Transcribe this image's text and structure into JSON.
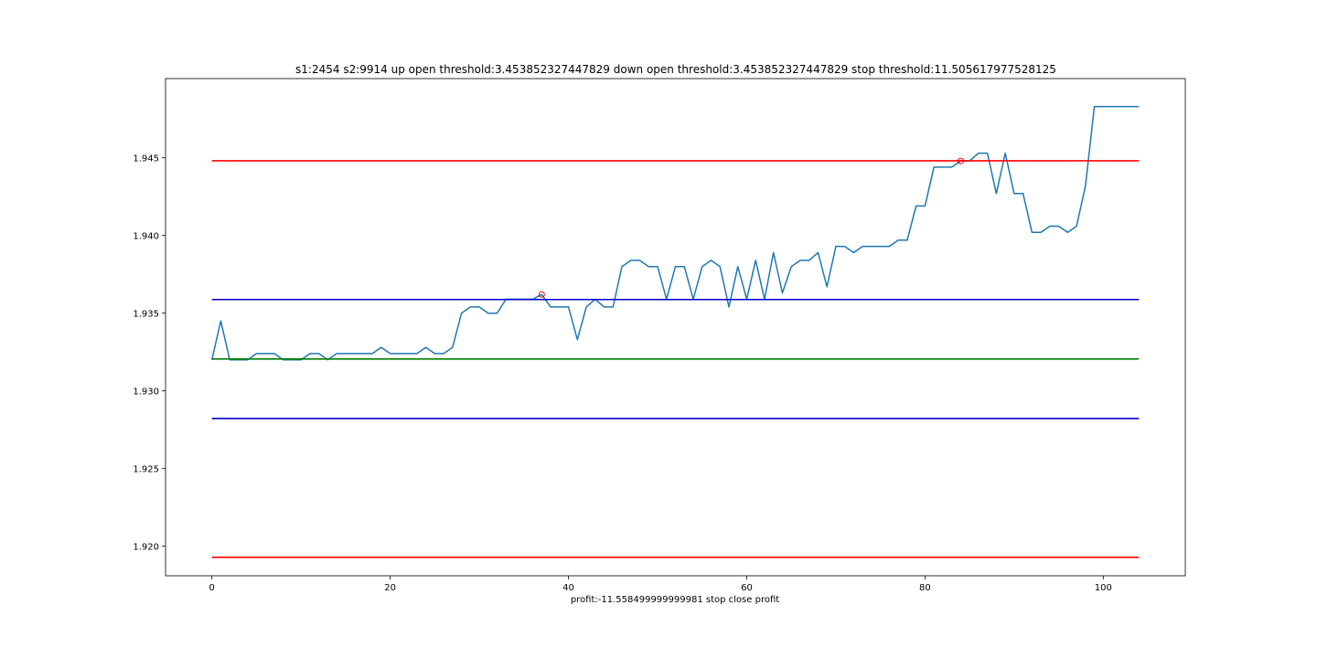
{
  "chart_data": {
    "type": "line",
    "title": "s1:2454 s2:9914 up open threshold:3.453852327447829 down open threshold:3.453852327447829 stop threshold:11.505617977528125",
    "xlabel": "profit:-11.558499999999981 stop close profit",
    "ylabel": "",
    "xlim": [
      -5.2,
      109.2
    ],
    "ylim": [
      1.9181,
      1.9501
    ],
    "x_ticks": [
      0,
      20,
      40,
      60,
      80,
      100
    ],
    "x_tick_labels": [
      "0",
      "20",
      "40",
      "60",
      "80",
      "100"
    ],
    "y_ticks": [
      1.92,
      1.925,
      1.93,
      1.935,
      1.94,
      1.945
    ],
    "y_tick_labels": [
      "1.920",
      "1.925",
      "1.930",
      "1.935",
      "1.940",
      "1.945"
    ],
    "grid": false,
    "series": [
      {
        "color": "#1f77b4",
        "style": "line",
        "x": [
          0,
          1,
          2,
          3,
          4,
          5,
          6,
          7,
          8,
          9,
          10,
          11,
          12,
          13,
          14,
          15,
          16,
          17,
          18,
          19,
          20,
          21,
          22,
          23,
          24,
          25,
          26,
          27,
          28,
          29,
          30,
          31,
          32,
          33,
          34,
          35,
          36,
          37,
          38,
          39,
          40,
          41,
          42,
          43,
          44,
          45,
          46,
          47,
          48,
          49,
          50,
          51,
          52,
          53,
          54,
          55,
          56,
          57,
          58,
          59,
          60,
          61,
          62,
          63,
          64,
          65,
          66,
          67,
          68,
          69,
          70,
          71,
          72,
          73,
          74,
          75,
          76,
          77,
          78,
          79,
          80,
          81,
          82,
          83,
          84,
          85,
          86,
          87,
          88,
          89,
          90,
          91,
          92,
          93,
          94,
          95,
          96,
          97,
          98,
          99,
          100,
          101,
          102,
          103,
          104
        ],
        "y": [
          1.932,
          1.9345,
          1.932,
          1.932,
          1.932,
          1.9324,
          1.9324,
          1.9324,
          1.932,
          1.932,
          1.932,
          1.9324,
          1.9324,
          1.932,
          1.9324,
          1.9324,
          1.9324,
          1.9324,
          1.9324,
          1.9328,
          1.9324,
          1.9324,
          1.9324,
          1.9324,
          1.9328,
          1.9324,
          1.9324,
          1.9328,
          1.935,
          1.9354,
          1.9354,
          1.935,
          1.935,
          1.9359,
          1.9359,
          1.9359,
          1.9359,
          1.9362,
          1.9354,
          1.9354,
          1.9354,
          1.9333,
          1.9354,
          1.9359,
          1.9354,
          1.9354,
          1.938,
          1.9384,
          1.9384,
          1.938,
          1.938,
          1.9359,
          1.938,
          1.938,
          1.9359,
          1.938,
          1.9384,
          1.938,
          1.9354,
          1.938,
          1.9359,
          1.9384,
          1.9359,
          1.9389,
          1.9363,
          1.938,
          1.9384,
          1.9384,
          1.9389,
          1.9367,
          1.9393,
          1.9393,
          1.9389,
          1.9393,
          1.9393,
          1.9393,
          1.9393,
          1.9397,
          1.9397,
          1.9419,
          1.9419,
          1.9444,
          1.9444,
          1.9444,
          1.9448,
          1.9448,
          1.9453,
          1.9453,
          1.9427,
          1.9453,
          1.9427,
          1.9427,
          1.9402,
          1.9402,
          1.9406,
          1.9406,
          1.9402,
          1.9406,
          1.9432,
          1.9483,
          1.9483,
          1.9483,
          1.9483,
          1.9483,
          1.9483
        ]
      },
      {
        "color": "#0000cc",
        "style": "hline",
        "y": 1.93588,
        "x": [
          0,
          104
        ]
      },
      {
        "color": "#0000cc",
        "style": "hline",
        "y": 1.92822,
        "x": [
          0,
          104
        ]
      },
      {
        "color": "#ff0000",
        "style": "hline",
        "y": 1.94481,
        "x": [
          0,
          104
        ]
      },
      {
        "color": "#ff0000",
        "style": "hline",
        "y": 1.91929,
        "x": [
          0,
          104
        ]
      },
      {
        "color": "#008000",
        "style": "hline",
        "y": 1.93205,
        "x": [
          0,
          104
        ]
      }
    ],
    "markers": [
      {
        "x": 37,
        "y": 1.9362,
        "color": "#ff0000"
      },
      {
        "x": 84,
        "y": 1.9448,
        "color": "#ff0000"
      }
    ]
  }
}
